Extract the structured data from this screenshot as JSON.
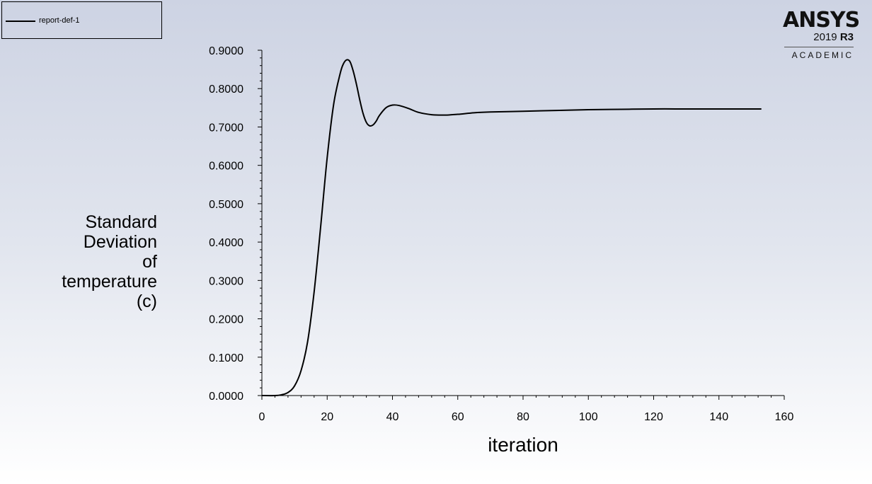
{
  "legend": {
    "entries": [
      "report-def-1"
    ]
  },
  "logo": {
    "brand": "ANSYS",
    "year": "2019",
    "release": "R3",
    "edition": "ACADEMIC"
  },
  "colors": {
    "line": "#000000",
    "axis": "#000000"
  },
  "chart_data": {
    "type": "line",
    "xlabel": "iteration",
    "ylabel_lines": [
      "Standard",
      "Deviation",
      "of",
      "temperature",
      "(c)"
    ],
    "xlim": [
      0,
      160
    ],
    "ylim": [
      0,
      0.9
    ],
    "x_ticks": [
      "0",
      "20",
      "40",
      "60",
      "80",
      "100",
      "120",
      "140",
      "160"
    ],
    "y_ticks": [
      "0.0000",
      "0.1000",
      "0.2000",
      "0.3000",
      "0.4000",
      "0.5000",
      "0.6000",
      "0.7000",
      "0.8000",
      "0.9000"
    ],
    "grid": false,
    "legend_position": "top-left",
    "series": [
      {
        "name": "report-def-1",
        "x": [
          0,
          4,
          6,
          8,
          10,
          12,
          14,
          16,
          18,
          20,
          22,
          24,
          25,
          26,
          27,
          28,
          29,
          30,
          31,
          32,
          33,
          34,
          35,
          36,
          38,
          40,
          42,
          45,
          48,
          52,
          56,
          60,
          65,
          70,
          80,
          90,
          100,
          110,
          120,
          130,
          140,
          153
        ],
        "y": [
          0.0,
          0.0,
          0.002,
          0.008,
          0.025,
          0.065,
          0.14,
          0.27,
          0.44,
          0.62,
          0.76,
          0.84,
          0.865,
          0.875,
          0.87,
          0.845,
          0.81,
          0.77,
          0.735,
          0.712,
          0.703,
          0.705,
          0.715,
          0.73,
          0.75,
          0.757,
          0.756,
          0.748,
          0.738,
          0.732,
          0.731,
          0.733,
          0.737,
          0.739,
          0.741,
          0.743,
          0.745,
          0.746,
          0.747,
          0.747,
          0.747,
          0.747
        ]
      }
    ]
  }
}
